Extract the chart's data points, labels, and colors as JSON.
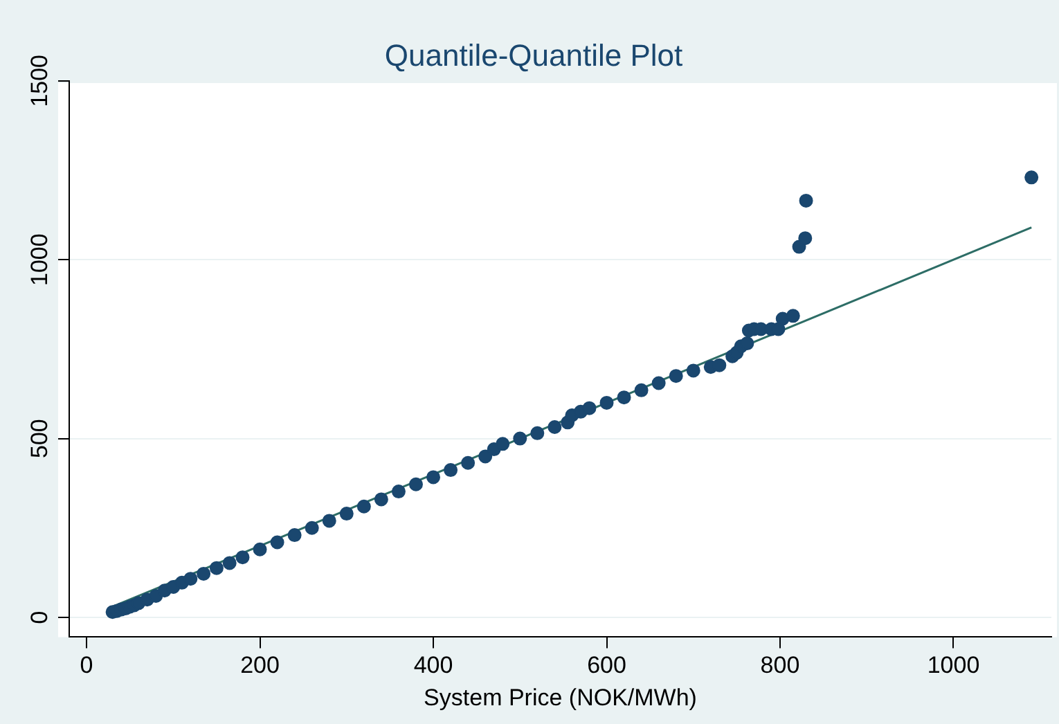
{
  "chart_data": {
    "type": "scatter",
    "title": "Quantile-Quantile Plot",
    "xlabel": "System Price (NOK/MWh)",
    "xlim": [
      -20,
      1113
    ],
    "xticks": [
      0,
      200,
      400,
      600,
      800,
      1000
    ],
    "ylim": [
      -55,
      1500
    ],
    "yticks": [
      0,
      500,
      1000,
      1500
    ],
    "grid": "y",
    "legend": false,
    "marker": "circle",
    "series": [
      {
        "color": "#1a476f",
        "x": [
          30,
          35,
          40,
          45,
          50,
          55,
          60,
          70,
          80,
          90,
          100,
          110,
          120,
          135,
          150,
          165,
          180,
          200,
          220,
          240,
          260,
          280,
          300,
          320,
          340,
          360,
          380,
          400,
          420,
          440,
          460,
          470,
          480,
          500,
          520,
          540,
          555,
          560,
          570,
          580,
          600,
          620,
          640,
          660,
          680,
          700,
          720,
          730,
          745,
          750,
          755,
          762,
          764,
          770,
          778,
          790,
          798,
          803,
          815,
          822,
          829,
          830,
          1090
        ],
        "values": [
          15,
          18,
          22,
          25,
          30,
          34,
          40,
          50,
          60,
          75,
          85,
          97,
          108,
          122,
          138,
          152,
          168,
          190,
          210,
          230,
          250,
          270,
          290,
          310,
          330,
          352,
          372,
          392,
          412,
          432,
          450,
          470,
          485,
          500,
          515,
          532,
          545,
          565,
          575,
          585,
          600,
          615,
          635,
          655,
          675,
          690,
          700,
          705,
          730,
          740,
          758,
          766,
          802,
          806,
          806,
          806,
          806,
          835,
          843,
          1036,
          1060,
          1165,
          1230
        ]
      },
      {
        "type": "line",
        "color": "#2d6d66",
        "marker": "none",
        "x": [
          30,
          1090
        ],
        "values": [
          30,
          1090
        ]
      }
    ]
  }
}
